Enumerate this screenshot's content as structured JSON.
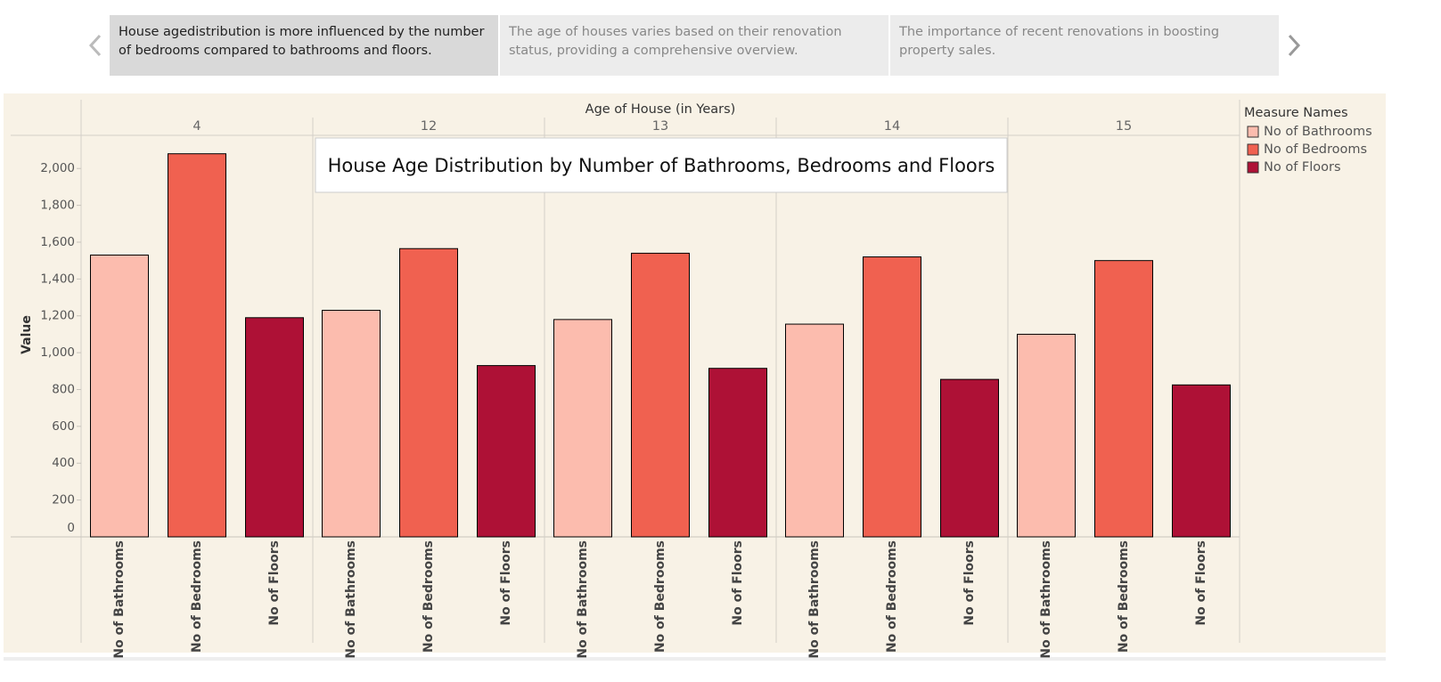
{
  "story": {
    "points": [
      "House agedistribution is more influenced by the number of bedrooms compared to bathrooms and floors.",
      "The age of houses varies based on their renovation status, providing a comprehensive overview.",
      "The importance of recent renovations in boosting property sales."
    ]
  },
  "chart_data": {
    "type": "bar",
    "title": "House Age Distribution by Number of Bathrooms, Bedrooms and Floors",
    "column_header": "Age of House (in Years)",
    "y_label": "Value",
    "legend_title": "Measure Names",
    "categories": [
      "4",
      "12",
      "13",
      "14",
      "15"
    ],
    "series": [
      {
        "name": "No of Bathrooms",
        "color": "#fcbcae",
        "values": [
          1530,
          1230,
          1180,
          1155,
          1100
        ]
      },
      {
        "name": "No of Bedrooms",
        "color": "#f06150",
        "values": [
          2080,
          1565,
          1540,
          1520,
          1500
        ]
      },
      {
        "name": "No of Floors",
        "color": "#ae1136",
        "values": [
          1190,
          930,
          915,
          855,
          825
        ]
      }
    ],
    "ylim": [
      0,
      2180
    ],
    "yticks": [
      0,
      200,
      400,
      600,
      800,
      {
        "value": 1000,
        "label": "1,000"
      },
      {
        "value": 1200,
        "label": "1,200"
      },
      {
        "value": 1400,
        "label": "1,400"
      },
      {
        "value": 1600,
        "label": "1,600"
      },
      {
        "value": 1800,
        "label": "1,800"
      },
      {
        "value": 2000,
        "label": "2,000"
      }
    ],
    "legend": "right"
  }
}
